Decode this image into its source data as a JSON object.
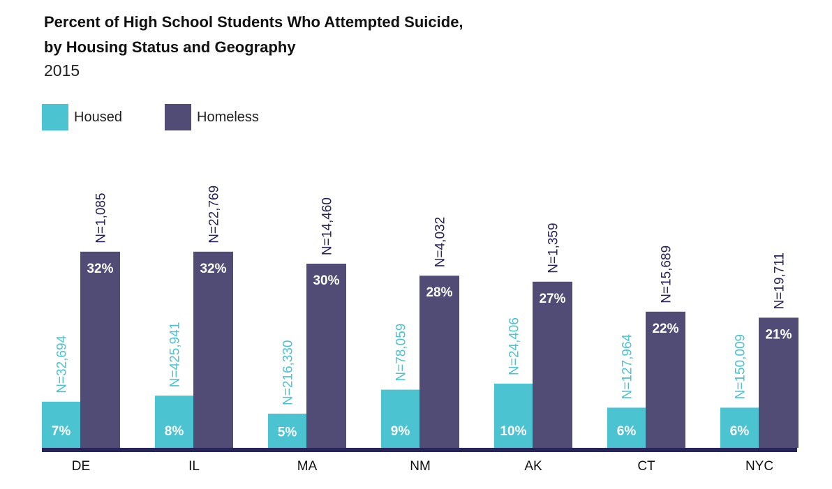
{
  "chart_data": {
    "type": "bar",
    "title_line1": "Percent of High School Students Who Attempted Suicide,",
    "title_line2": "by Housing Status and Geography",
    "subtitle": "2015",
    "categories": [
      "DE",
      "IL",
      "MA",
      "NM",
      "AK",
      "CT",
      "NYC"
    ],
    "series": [
      {
        "name": "Housed",
        "color": "#4BC3D1",
        "values": [
          7,
          8,
          5,
          9,
          10,
          6,
          6
        ],
        "labels": [
          "7%",
          "8%",
          "5%",
          "9%",
          "10%",
          "6%",
          "6%"
        ],
        "n_labels": [
          "N=32,694",
          "N=425,941",
          "N=216,330",
          "N=78,059",
          "N=24,406",
          "N=127,964",
          "N=150,009"
        ]
      },
      {
        "name": "Homeless",
        "color": "#514C76",
        "values": [
          32,
          32,
          30,
          28,
          27,
          22,
          21
        ],
        "labels": [
          "32%",
          "32%",
          "30%",
          "28%",
          "27%",
          "22%",
          "21%"
        ],
        "n_labels": [
          "N=1,085",
          "N=22,769",
          "N=14,460",
          "N=4,032",
          "N=1,359",
          "N=15,689",
          "N=19,711"
        ]
      }
    ],
    "xlabel": "",
    "ylabel": "",
    "ylim": [
      0,
      35
    ],
    "grid": false,
    "legend": "top-left",
    "axis_color": "#27245A",
    "housed_n_color": "#4BC3D1",
    "homeless_n_color": "#27245A"
  }
}
